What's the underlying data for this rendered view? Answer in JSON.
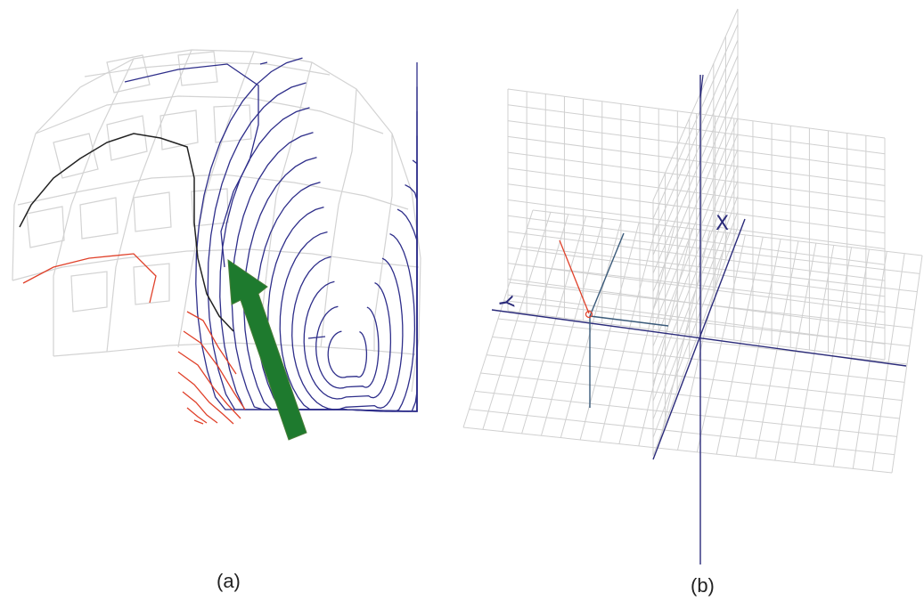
{
  "panels": [
    {
      "caption": "(a)"
    },
    {
      "caption": "(b)"
    }
  ],
  "axes_b": {
    "x_label": "X",
    "y_label": "Y"
  },
  "colors": {
    "grid": "#cfcfcf",
    "mesh": "#cfcfcf",
    "axis": "#2b2b7a",
    "contour_blue": "#2e2e8a",
    "contour_red": "#e0412a",
    "contour_black": "#222222",
    "arrow": "#1e7a2e"
  },
  "icons": {
    "arrow": "green-arrow-icon"
  }
}
